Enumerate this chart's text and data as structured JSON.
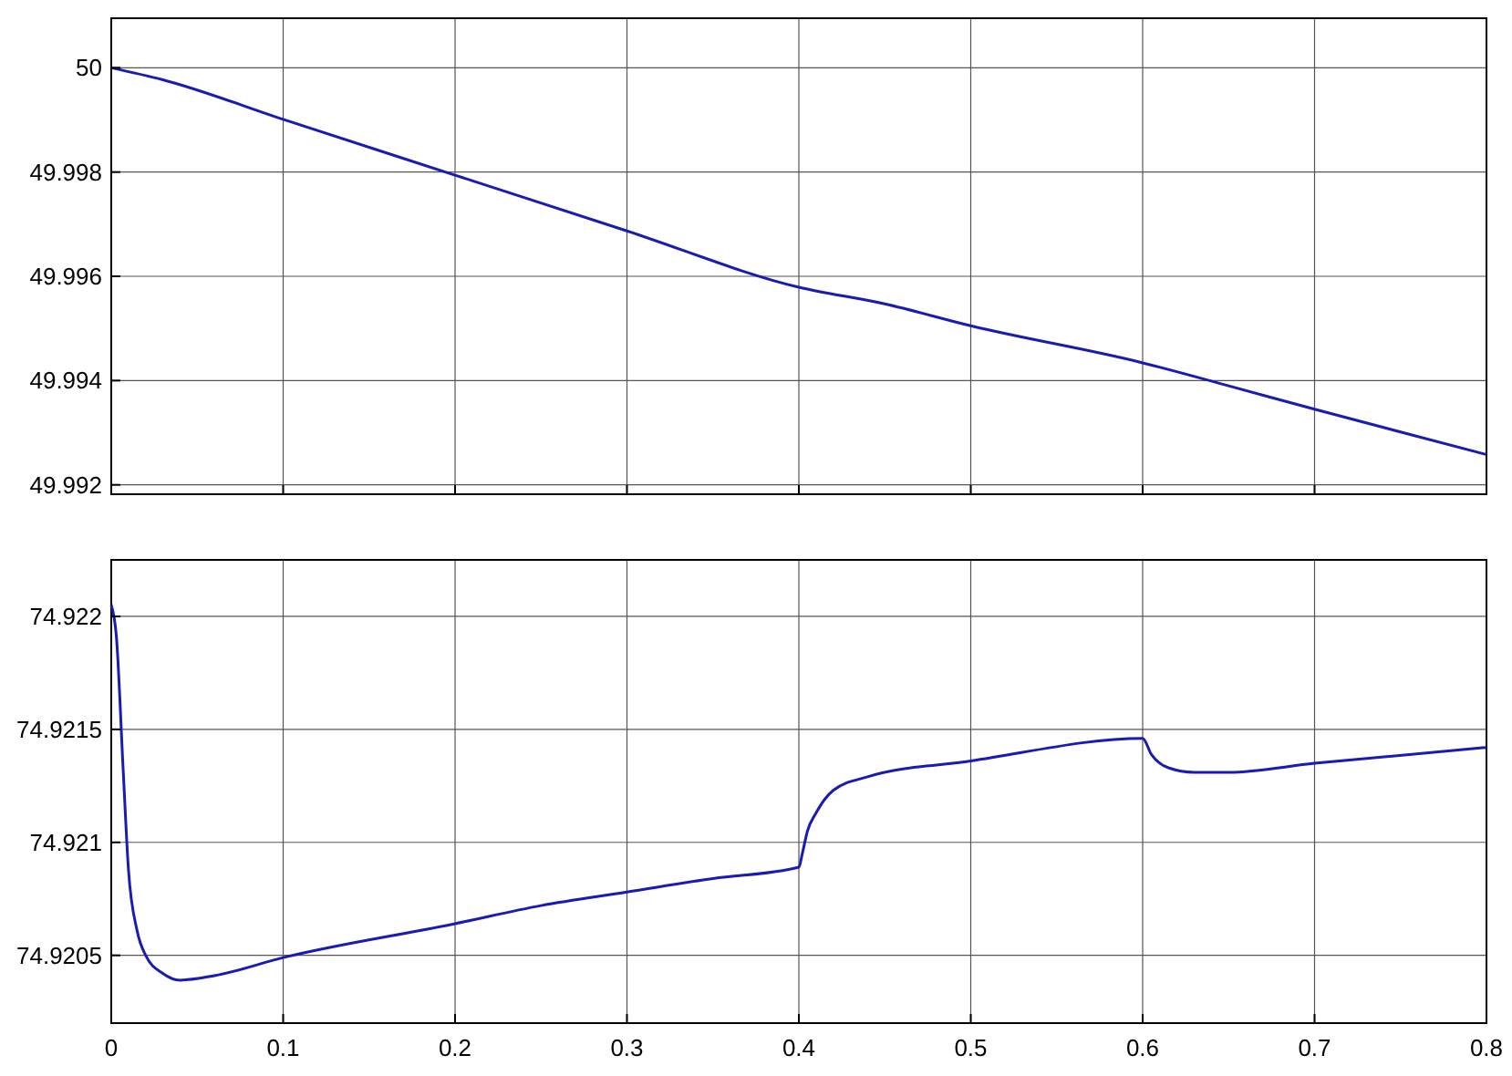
{
  "chart_data": [
    {
      "type": "line",
      "x": [
        0,
        0.03,
        0.1,
        0.2,
        0.3,
        0.4,
        0.45,
        0.5,
        0.6,
        0.65,
        0.7,
        0.8
      ],
      "tick_labels": "y",
      "grid": true,
      "xlim": [
        0,
        0.8
      ],
      "xticks": [
        0,
        0.1,
        0.2,
        0.3,
        0.4,
        0.5,
        0.6,
        0.7,
        0.8
      ],
      "ylim": [
        49.99182,
        50.00095
      ],
      "yticks": [
        49.992,
        49.994,
        49.996,
        49.998,
        50
      ],
      "series": [
        {
          "color": "#1a1ab4",
          "values": [
            50,
            49.99977,
            49.99901,
            49.99794,
            49.99687,
            49.99579,
            49.99547,
            49.99505,
            49.99434,
            49.9939,
            49.99345,
            49.99258
          ]
        }
      ]
    },
    {
      "type": "line",
      "x": [
        0,
        0.003,
        0.007,
        0.01,
        0.015,
        0.02,
        0.03,
        0.04,
        0.06,
        0.1,
        0.2,
        0.25,
        0.3,
        0.35,
        0.4,
        0.402,
        0.405,
        0.41,
        0.42,
        0.44,
        0.5,
        0.6,
        0.605,
        0.615,
        0.63,
        0.65,
        0.7,
        0.8
      ],
      "grid": true,
      "xlim": [
        0,
        0.8
      ],
      "xticks": [
        0,
        0.1,
        0.2,
        0.3,
        0.4,
        0.5,
        0.6,
        0.7,
        0.8
      ],
      "ylim": [
        74.9202,
        74.92225
      ],
      "yticks": [
        74.9205,
        74.921,
        74.9215,
        74.922
      ],
      "series": [
        {
          "color": "#1a1ab4",
          "values": [
            74.92205,
            74.92191,
            74.92131,
            74.92088,
            74.92061,
            74.9205,
            74.92042,
            74.92039,
            74.92041,
            74.92049,
            74.92064,
            74.92072,
            74.92078,
            74.92084,
            74.92089,
            74.92095,
            74.92105,
            74.92113,
            74.92123,
            74.92129,
            74.92136,
            74.92146,
            74.92139,
            74.92133,
            74.92131,
            74.92131,
            74.92135,
            74.92142
          ]
        }
      ]
    }
  ]
}
